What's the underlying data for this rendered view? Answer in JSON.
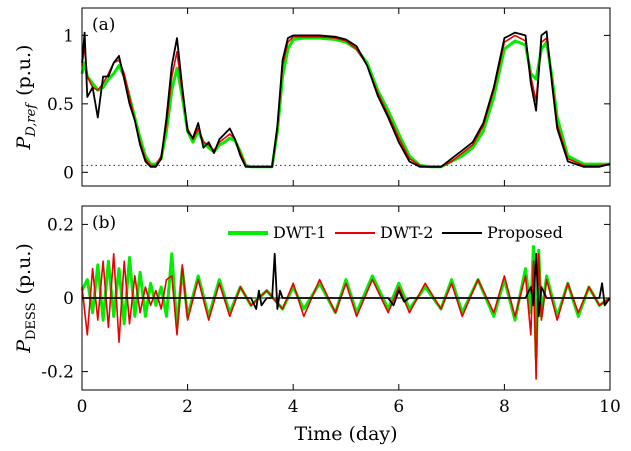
{
  "chart_data": [
    {
      "type": "line",
      "panel_tag": "(a)",
      "ylabel": {
        "main": "P",
        "sub": "D,ref",
        "unit": "(p.u.)"
      },
      "xlim": [
        0,
        10
      ],
      "ylim": [
        -0.1,
        1.2
      ],
      "xticks": [
        "0",
        "2",
        "4",
        "6",
        "8",
        "10"
      ],
      "yticks": [
        {
          "value": 0,
          "label": "0"
        },
        {
          "value": 0.5,
          "label": "0.5"
        },
        {
          "value": 1,
          "label": "1"
        }
      ],
      "reference_line": {
        "y": 0.05,
        "style": "dotted",
        "color": "#3333cc"
      },
      "series": [
        {
          "color": "#00ee00",
          "x": [
            0,
            0.05,
            0.1,
            0.2,
            0.3,
            0.4,
            0.5,
            0.6,
            0.7,
            0.8,
            0.9,
            1.0,
            1.1,
            1.2,
            1.3,
            1.4,
            1.5,
            1.6,
            1.7,
            1.8,
            1.9,
            2.0,
            2.1,
            2.2,
            2.3,
            2.4,
            2.5,
            2.6,
            2.7,
            2.8,
            2.9,
            3.0,
            3.1,
            3.2,
            3.3,
            3.6,
            3.7,
            3.8,
            3.9,
            4.0,
            4.2,
            4.5,
            4.8,
            5.0,
            5.2,
            5.4,
            5.6,
            5.8,
            6.0,
            6.2,
            6.4,
            6.6,
            6.8,
            7.0,
            7.2,
            7.4,
            7.6,
            7.8,
            8.0,
            8.2,
            8.4,
            8.5,
            8.6,
            8.7,
            8.8,
            8.9,
            9.0,
            9.2,
            9.5,
            9.8,
            10.0
          ],
          "y": [
            0.72,
            0.8,
            0.7,
            0.65,
            0.6,
            0.62,
            0.68,
            0.72,
            0.78,
            0.7,
            0.55,
            0.4,
            0.25,
            0.12,
            0.06,
            0.06,
            0.1,
            0.3,
            0.6,
            0.76,
            0.55,
            0.3,
            0.22,
            0.3,
            0.22,
            0.18,
            0.15,
            0.2,
            0.22,
            0.25,
            0.23,
            0.15,
            0.05,
            0.04,
            0.04,
            0.04,
            0.3,
            0.7,
            0.9,
            0.97,
            0.98,
            0.98,
            0.97,
            0.95,
            0.9,
            0.8,
            0.6,
            0.45,
            0.28,
            0.12,
            0.05,
            0.04,
            0.04,
            0.08,
            0.12,
            0.18,
            0.3,
            0.55,
            0.9,
            0.96,
            0.93,
            0.72,
            0.68,
            0.9,
            0.95,
            0.7,
            0.4,
            0.12,
            0.06,
            0.06,
            0.06
          ]
        },
        {
          "color": "#ee0000",
          "x": [
            0,
            0.05,
            0.1,
            0.2,
            0.3,
            0.4,
            0.5,
            0.6,
            0.7,
            0.8,
            0.9,
            1.0,
            1.1,
            1.2,
            1.3,
            1.4,
            1.5,
            1.6,
            1.7,
            1.8,
            1.9,
            2.0,
            2.1,
            2.2,
            2.3,
            2.4,
            2.5,
            2.6,
            2.7,
            2.8,
            2.9,
            3.0,
            3.1,
            3.2,
            3.3,
            3.6,
            3.7,
            3.8,
            3.9,
            4.0,
            4.2,
            4.5,
            4.8,
            5.0,
            5.2,
            5.4,
            5.6,
            5.8,
            6.0,
            6.2,
            6.4,
            6.6,
            6.8,
            7.0,
            7.2,
            7.4,
            7.6,
            7.8,
            8.0,
            8.2,
            8.4,
            8.5,
            8.6,
            8.7,
            8.8,
            8.9,
            9.0,
            9.2,
            9.5,
            9.8,
            10.0
          ],
          "y": [
            0.78,
            0.92,
            0.7,
            0.62,
            0.6,
            0.65,
            0.72,
            0.8,
            0.82,
            0.72,
            0.55,
            0.38,
            0.22,
            0.1,
            0.05,
            0.05,
            0.12,
            0.35,
            0.7,
            0.88,
            0.58,
            0.32,
            0.24,
            0.32,
            0.22,
            0.2,
            0.16,
            0.22,
            0.25,
            0.28,
            0.24,
            0.14,
            0.05,
            0.04,
            0.04,
            0.04,
            0.32,
            0.78,
            0.95,
            0.99,
            0.99,
            0.99,
            0.98,
            0.96,
            0.9,
            0.78,
            0.58,
            0.42,
            0.25,
            0.1,
            0.05,
            0.04,
            0.04,
            0.08,
            0.14,
            0.2,
            0.34,
            0.6,
            0.95,
            1.0,
            0.96,
            0.7,
            0.52,
            0.95,
            0.98,
            0.68,
            0.35,
            0.1,
            0.05,
            0.05,
            0.06
          ]
        },
        {
          "color": "#000000",
          "x": [
            0,
            0.05,
            0.1,
            0.2,
            0.3,
            0.4,
            0.5,
            0.6,
            0.7,
            0.8,
            0.9,
            1.0,
            1.1,
            1.2,
            1.3,
            1.4,
            1.5,
            1.6,
            1.7,
            1.8,
            1.9,
            2.0,
            2.1,
            2.2,
            2.3,
            2.4,
            2.5,
            2.6,
            2.7,
            2.8,
            2.9,
            3.0,
            3.1,
            3.2,
            3.3,
            3.6,
            3.7,
            3.8,
            3.9,
            4.0,
            4.2,
            4.5,
            4.8,
            5.0,
            5.2,
            5.4,
            5.6,
            5.8,
            6.0,
            6.2,
            6.4,
            6.6,
            6.8,
            7.0,
            7.2,
            7.4,
            7.6,
            7.8,
            8.0,
            8.2,
            8.4,
            8.5,
            8.6,
            8.7,
            8.8,
            8.9,
            9.0,
            9.2,
            9.5,
            9.8,
            10.0
          ],
          "y": [
            0.8,
            1.02,
            0.55,
            0.62,
            0.4,
            0.7,
            0.7,
            0.8,
            0.85,
            0.68,
            0.5,
            0.38,
            0.2,
            0.08,
            0.04,
            0.04,
            0.1,
            0.4,
            0.78,
            0.98,
            0.62,
            0.3,
            0.25,
            0.36,
            0.18,
            0.22,
            0.14,
            0.24,
            0.28,
            0.32,
            0.24,
            0.12,
            0.04,
            0.04,
            0.04,
            0.04,
            0.34,
            0.82,
            0.98,
            1.0,
            1.0,
            1.0,
            0.99,
            0.97,
            0.92,
            0.78,
            0.56,
            0.4,
            0.22,
            0.08,
            0.04,
            0.04,
            0.04,
            0.1,
            0.16,
            0.22,
            0.36,
            0.62,
            0.98,
            1.02,
            1.0,
            0.65,
            0.45,
            1.0,
            1.03,
            0.65,
            0.32,
            0.08,
            0.04,
            0.04,
            0.06
          ]
        }
      ]
    },
    {
      "type": "line",
      "panel_tag": "(b)",
      "ylabel": {
        "main": "P",
        "sub": "DESS",
        "unit": "(p.u.)"
      },
      "xlabel": "Time (day)",
      "xlim": [
        0,
        10
      ],
      "ylim": [
        -0.25,
        0.25
      ],
      "xticks": [
        "0",
        "2",
        "4",
        "6",
        "8",
        "10"
      ],
      "yticks": [
        {
          "value": -0.2,
          "label": "-0.2"
        },
        {
          "value": 0,
          "label": "0"
        },
        {
          "value": 0.2,
          "label": "0.2"
        }
      ],
      "series": [
        {
          "name": "DWT-1",
          "color": "#00ee00",
          "x": [
            0,
            0.1,
            0.2,
            0.3,
            0.4,
            0.5,
            0.6,
            0.7,
            0.8,
            0.9,
            1.0,
            1.1,
            1.2,
            1.3,
            1.4,
            1.5,
            1.6,
            1.7,
            1.8,
            1.9,
            2.0,
            2.2,
            2.4,
            2.6,
            2.8,
            3.0,
            3.2,
            3.5,
            3.8,
            4.0,
            4.2,
            4.5,
            4.8,
            5.0,
            5.2,
            5.5,
            5.8,
            6.0,
            6.2,
            6.5,
            6.8,
            7.0,
            7.2,
            7.5,
            7.8,
            8.0,
            8.2,
            8.4,
            8.5,
            8.55,
            8.6,
            8.65,
            8.7,
            8.8,
            9.0,
            9.2,
            9.4,
            9.6,
            9.8,
            10.0
          ],
          "y": [
            0.02,
            0.05,
            -0.04,
            0.09,
            -0.06,
            0.1,
            -0.05,
            0.08,
            -0.07,
            0.11,
            -0.05,
            0.07,
            -0.05,
            0.04,
            -0.02,
            0.03,
            -0.05,
            0.12,
            -0.08,
            0.08,
            -0.05,
            0.06,
            -0.05,
            0.05,
            -0.04,
            0.03,
            -0.02,
            0.02,
            -0.03,
            0.03,
            -0.03,
            0.04,
            -0.04,
            0.05,
            -0.04,
            0.06,
            -0.03,
            0.04,
            -0.03,
            0.03,
            -0.03,
            0.05,
            -0.04,
            0.05,
            -0.05,
            0.05,
            -0.06,
            0.08,
            -0.04,
            0.14,
            -0.16,
            0.13,
            -0.05,
            0.06,
            -0.05,
            0.04,
            -0.05,
            0.03,
            -0.02,
            0.0
          ]
        },
        {
          "name": "DWT-2",
          "color": "#ee0000",
          "x": [
            0,
            0.1,
            0.2,
            0.3,
            0.4,
            0.5,
            0.6,
            0.7,
            0.8,
            0.9,
            1.0,
            1.1,
            1.2,
            1.3,
            1.4,
            1.5,
            1.6,
            1.7,
            1.8,
            1.9,
            2.0,
            2.2,
            2.4,
            2.6,
            2.8,
            3.0,
            3.2,
            3.5,
            3.8,
            4.0,
            4.2,
            4.5,
            4.8,
            5.0,
            5.2,
            5.5,
            5.8,
            6.0,
            6.2,
            6.5,
            6.8,
            7.0,
            7.2,
            7.5,
            7.8,
            8.0,
            8.2,
            8.4,
            8.5,
            8.55,
            8.6,
            8.65,
            8.7,
            8.8,
            9.0,
            9.2,
            9.4,
            9.6,
            9.8,
            10.0
          ],
          "y": [
            0.03,
            -0.1,
            0.08,
            -0.06,
            0.1,
            -0.08,
            0.12,
            -0.12,
            0.1,
            -0.07,
            0.06,
            -0.04,
            0.03,
            -0.02,
            0.02,
            -0.03,
            0.05,
            0.06,
            -0.1,
            0.09,
            -0.06,
            0.05,
            -0.06,
            0.04,
            -0.05,
            0.03,
            -0.02,
            0.02,
            -0.03,
            0.04,
            -0.05,
            0.05,
            -0.04,
            0.04,
            -0.05,
            0.05,
            -0.04,
            0.03,
            -0.04,
            0.04,
            -0.03,
            0.04,
            -0.05,
            0.05,
            -0.04,
            0.06,
            -0.05,
            0.06,
            -0.1,
            0.1,
            -0.22,
            0.12,
            -0.06,
            0.05,
            -0.06,
            0.04,
            -0.04,
            0.03,
            -0.02,
            0.0
          ]
        },
        {
          "name": "Proposed",
          "color": "#000000",
          "x": [
            0,
            3.2,
            3.3,
            3.35,
            3.4,
            3.5,
            3.6,
            3.65,
            3.7,
            3.75,
            3.8,
            4.0,
            5.5,
            5.8,
            5.9,
            6.0,
            6.1,
            6.2,
            6.5,
            8.0,
            8.4,
            8.5,
            8.55,
            8.6,
            8.65,
            8.7,
            8.8,
            9.5,
            9.8,
            9.85,
            9.9,
            10.0
          ],
          "y": [
            0.0,
            0.0,
            -0.03,
            0.02,
            -0.02,
            0.0,
            0.0,
            0.12,
            -0.03,
            0.02,
            0.0,
            0.0,
            0.0,
            0.0,
            -0.02,
            0.02,
            -0.01,
            0.0,
            0.0,
            0.0,
            0.0,
            0.03,
            -0.02,
            0.12,
            -0.05,
            0.03,
            0.0,
            0.0,
            0.0,
            0.04,
            -0.02,
            0.0
          ]
        }
      ]
    }
  ]
}
